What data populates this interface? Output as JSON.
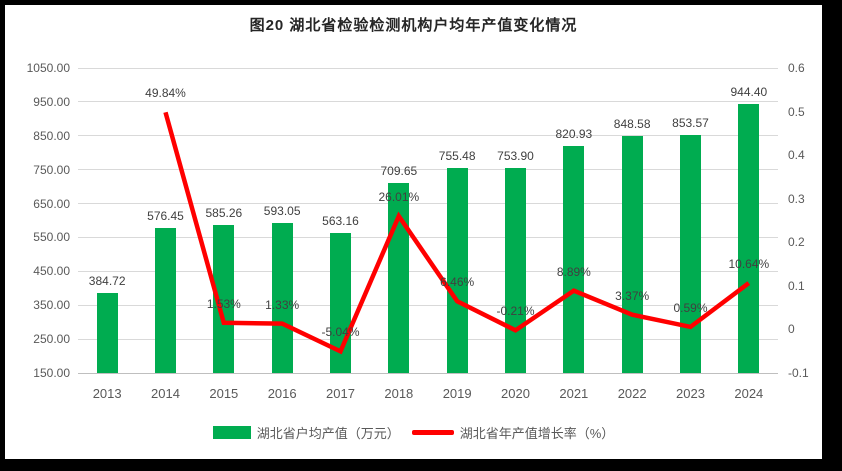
{
  "frame": {
    "border_color": "#000000",
    "background": "#FFFFFF"
  },
  "chart_data": {
    "type": "combo-bar-line",
    "title": "图20 湖北省检验检测机构户均年产值变化情况",
    "categories": [
      "2013",
      "2014",
      "2015",
      "2016",
      "2017",
      "2018",
      "2019",
      "2020",
      "2021",
      "2022",
      "2023",
      "2024"
    ],
    "series": [
      {
        "name": "湖北省户均产值（万元）",
        "type": "bar",
        "axis": "left",
        "color": "#00AC50",
        "values": [
          384.72,
          576.45,
          585.26,
          593.05,
          563.16,
          709.65,
          755.48,
          753.9,
          820.93,
          848.58,
          853.57,
          944.4
        ],
        "labels": [
          "384.72",
          "576.45",
          "585.26",
          "593.05",
          "563.16",
          "709.65",
          "755.48",
          "753.90",
          "820.93",
          "848.58",
          "853.57",
          "944.40"
        ]
      },
      {
        "name": "湖北省年产值增长率（%）",
        "type": "line",
        "axis": "right",
        "color": "#FF0000",
        "values": [
          null,
          0.4984,
          0.0153,
          0.0133,
          -0.0504,
          0.2601,
          0.0646,
          -0.0021,
          0.0889,
          0.0337,
          0.0059,
          0.1064
        ],
        "labels": [
          null,
          "49.84%",
          "1.53%",
          "1.33%",
          "-5.04%",
          "26.01%",
          "6.46%",
          "-0.21%",
          "8.89%",
          "3.37%",
          "0.59%",
          "10.64%"
        ]
      }
    ],
    "left_axis": {
      "min": 150,
      "max": 1050,
      "step": 100,
      "tick_labels": [
        "1050.00",
        "950.00",
        "850.00",
        "750.00",
        "650.00",
        "550.00",
        "450.00",
        "350.00",
        "250.00",
        "150.00"
      ]
    },
    "right_axis": {
      "min": -0.1,
      "max": 0.6,
      "step": 0.1,
      "tick_labels": [
        "0.6",
        "0.5",
        "0.4",
        "0.3",
        "0.2",
        "0.1",
        "0",
        "-0.1"
      ]
    },
    "grid": true,
    "legend_position": "bottom",
    "gridline_color": "#d9d9d9",
    "axis_line_color": "#bfbfbf"
  }
}
